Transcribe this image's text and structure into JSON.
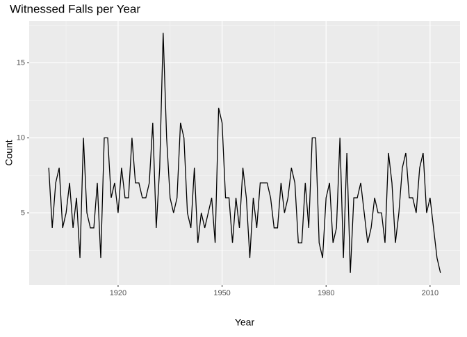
{
  "chart_data": {
    "type": "line",
    "title": "Witnessed Falls per Year",
    "x_label": "Year",
    "y_label": "Count",
    "x": [
      1900,
      1901,
      1902,
      1903,
      1904,
      1905,
      1906,
      1907,
      1908,
      1909,
      1910,
      1911,
      1912,
      1913,
      1914,
      1915,
      1916,
      1917,
      1918,
      1919,
      1920,
      1921,
      1922,
      1923,
      1924,
      1925,
      1926,
      1927,
      1928,
      1929,
      1930,
      1931,
      1932,
      1933,
      1934,
      1935,
      1936,
      1937,
      1938,
      1939,
      1940,
      1941,
      1942,
      1943,
      1944,
      1945,
      1946,
      1947,
      1948,
      1949,
      1950,
      1951,
      1952,
      1953,
      1954,
      1955,
      1956,
      1957,
      1958,
      1959,
      1960,
      1961,
      1962,
      1963,
      1964,
      1965,
      1966,
      1967,
      1968,
      1969,
      1970,
      1971,
      1972,
      1973,
      1974,
      1975,
      1976,
      1977,
      1978,
      1979,
      1980,
      1981,
      1982,
      1983,
      1984,
      1985,
      1986,
      1987,
      1988,
      1989,
      1990,
      1991,
      1992,
      1993,
      1994,
      1995,
      1996,
      1997,
      1998,
      1999,
      2000,
      2001,
      2002,
      2003,
      2004,
      2005,
      2006,
      2007,
      2008,
      2009,
      2010,
      2011,
      2012,
      2013
    ],
    "series": [
      {
        "name": "Count",
        "color": "#000000",
        "values": [
          8,
          4,
          7,
          8,
          4,
          5,
          7,
          4,
          6,
          2,
          10,
          5,
          4,
          4,
          7,
          2,
          10,
          10,
          6,
          7,
          5,
          8,
          6,
          6,
          10,
          7,
          7,
          6,
          6,
          7,
          11,
          4,
          8,
          17,
          10,
          6,
          5,
          6,
          11,
          10,
          5,
          4,
          8,
          3,
          5,
          4,
          5,
          6,
          3,
          12,
          11,
          6,
          6,
          3,
          6,
          4,
          8,
          6,
          2,
          6,
          4,
          7,
          7,
          7,
          6,
          4,
          4,
          7,
          5,
          6,
          8,
          7,
          3,
          3,
          7,
          4,
          10,
          10,
          3,
          2,
          6,
          7,
          3,
          4,
          10,
          2,
          9,
          1,
          6,
          6,
          7,
          5,
          3,
          4,
          6,
          5,
          5,
          3,
          9,
          7,
          3,
          5,
          8,
          9,
          6,
          6,
          5,
          8,
          9,
          5,
          6,
          4,
          2,
          1
        ]
      }
    ],
    "xlim": [
      1894.35,
      2018.65
    ],
    "xticks": [
      1920,
      1950,
      1980,
      2010
    ],
    "ylim": [
      0.2,
      17.8
    ],
    "yticks": [
      5,
      10,
      15
    ],
    "grid": true
  }
}
